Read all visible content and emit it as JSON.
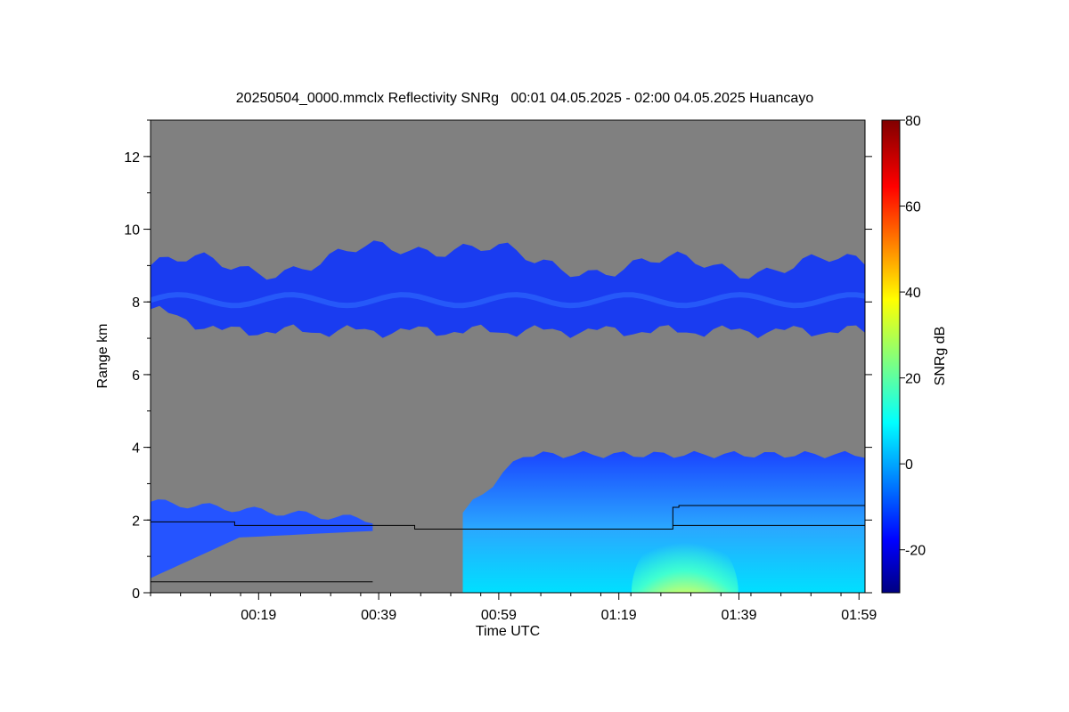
{
  "chart_data": {
    "type": "heatmap",
    "title": "20250504_0000.mmclx Reflectivity SNRg   00:01 04.05.2025 - 02:00 04.05.2025 Huancayo",
    "xlabel": "Time UTC",
    "ylabel": "Range km",
    "colorbar_label": "SNRg dB",
    "x_range": [
      "00:01",
      "02:00"
    ],
    "x_ticks": [
      "00:19",
      "00:39",
      "00:59",
      "01:19",
      "01:39",
      "01:59"
    ],
    "ylim": [
      0,
      13
    ],
    "y_ticks": [
      "0",
      "2",
      "4",
      "6",
      "8",
      "10",
      "12"
    ],
    "colorbar_range": [
      -30,
      80
    ],
    "colorbar_ticks": [
      "-20",
      "0",
      "20",
      "40",
      "60",
      "80"
    ],
    "background_color": "#808080",
    "colormap": "jet",
    "layers": [
      {
        "name": "upper cloud layer",
        "start": "00:01",
        "end": "02:00",
        "base_km": 7.2,
        "top_km": 9.0,
        "snr_db": -20
      },
      {
        "name": "lower cloud layer",
        "start": "00:53",
        "end": "02:00",
        "base_km": 0.0,
        "top_km": 3.8,
        "snr_db": 5
      },
      {
        "name": "low layer west",
        "start": "00:01",
        "end": "00:38",
        "base_km": 1.4,
        "top_km": 2.5,
        "snr_db": -20
      }
    ],
    "cloud_base_line": [
      {
        "time": "00:01",
        "km": 1.95
      },
      {
        "time": "00:15",
        "km": 1.95
      },
      {
        "time": "00:15",
        "km": 1.85
      },
      {
        "time": "00:45",
        "km": 1.85
      },
      {
        "time": "00:45",
        "km": 1.75
      },
      {
        "time": "01:28",
        "km": 1.75
      },
      {
        "time": "01:28",
        "km": 2.35
      },
      {
        "time": "01:29",
        "km": 2.35
      },
      {
        "time": "01:29",
        "km": 2.4
      },
      {
        "time": "02:00",
        "km": 2.4
      }
    ],
    "second_line": [
      {
        "time": "01:28",
        "km": 1.85
      },
      {
        "time": "01:45",
        "km": 1.85
      },
      {
        "time": "01:45",
        "km": 1.85
      },
      {
        "time": "02:00",
        "km": 1.85
      }
    ],
    "surface_line_km": 0.3
  }
}
